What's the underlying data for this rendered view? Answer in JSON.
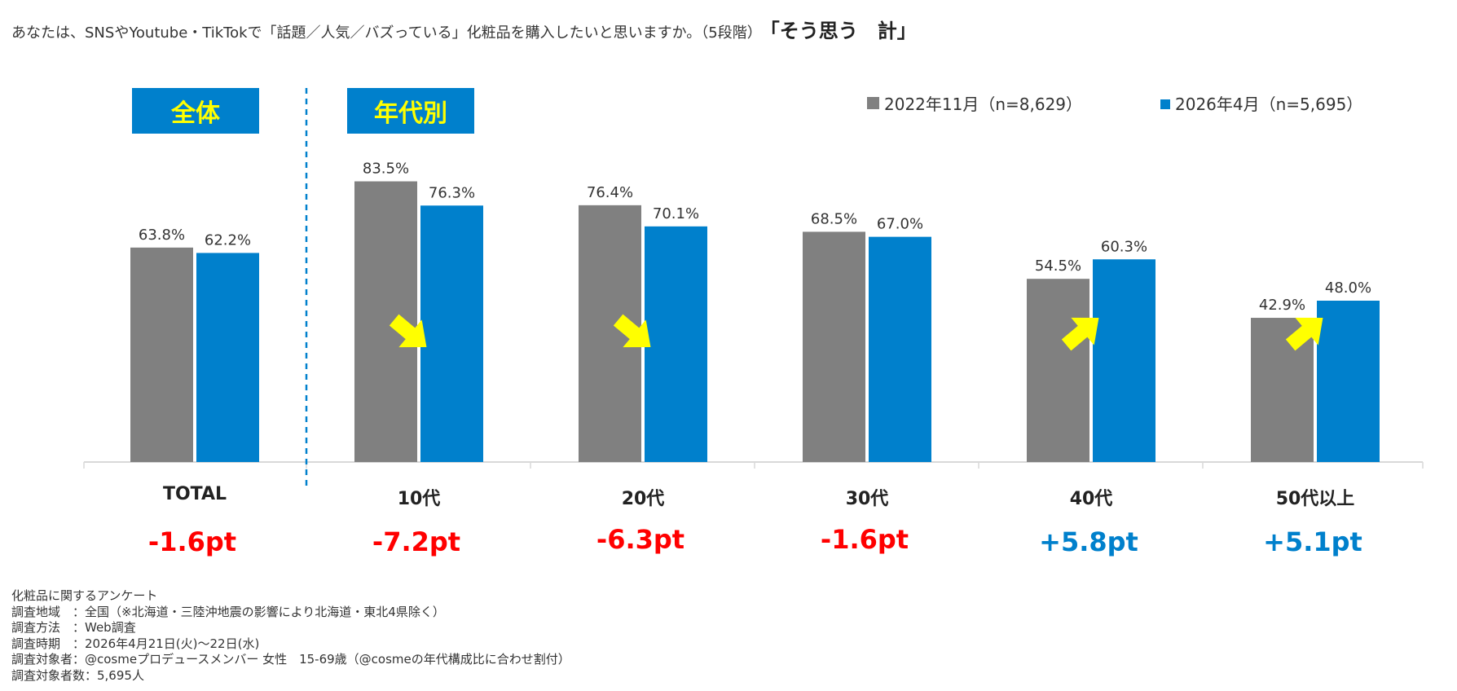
{
  "header": {
    "question": "あなたは、SNSやYoutube・TikTokで「話題／人気／バズっている」化粧品を購入したいと思いますか。（5段階）",
    "emphasis": "「そう思う　計」"
  },
  "badges": {
    "total": "全体",
    "by_age": "年代別"
  },
  "colors": {
    "series_2022": "#808080",
    "series_2026": "#0080CC",
    "negative": "#FF0000",
    "positive": "#0080CC",
    "arrow": "#FFFF00",
    "badge_text": "#FFFF00"
  },
  "chart_data": {
    "type": "bar",
    "categories": [
      "TOTAL",
      "10代",
      "20代",
      "30代",
      "40代",
      "50代以上"
    ],
    "series": [
      {
        "name": "2022年11月（n=8,629）",
        "values": [
          63.8,
          83.5,
          76.4,
          68.5,
          54.5,
          42.9
        ],
        "labels": [
          "63.8%",
          "83.5%",
          "76.4%",
          "68.5%",
          "54.5%",
          "42.9%"
        ]
      },
      {
        "name": "2026年4月（n=5,695）",
        "values": [
          62.2,
          76.3,
          70.1,
          67.0,
          60.3,
          48.0
        ],
        "labels": [
          "62.2%",
          "76.3%",
          "70.1%",
          "67.0%",
          "60.3%",
          "48.0%"
        ]
      }
    ],
    "differences": [
      "-1.6pt",
      "-7.2pt",
      "-6.3pt",
      "-1.6pt",
      "+5.8pt",
      "+5.1pt"
    ],
    "trend": [
      "none",
      "down",
      "down",
      "none",
      "up",
      "up"
    ],
    "ylim": [
      0,
      100
    ],
    "legend_position": "top-right"
  },
  "footer": {
    "lines": [
      "化粧品に関するアンケート",
      "調査地域　：全国（※北海道・三陸沖地震の影響により北海道・東北4県除く）",
      "調査方法　：Web調査",
      "調査時期　：2026年4月21日(火)～22日(水)",
      "調査対象者：@cosmeプロデュースメンバー 女性　15-69歳（@cosmeの年代構成比に合わせ割付）",
      "調査対象者数：5,695人"
    ]
  }
}
